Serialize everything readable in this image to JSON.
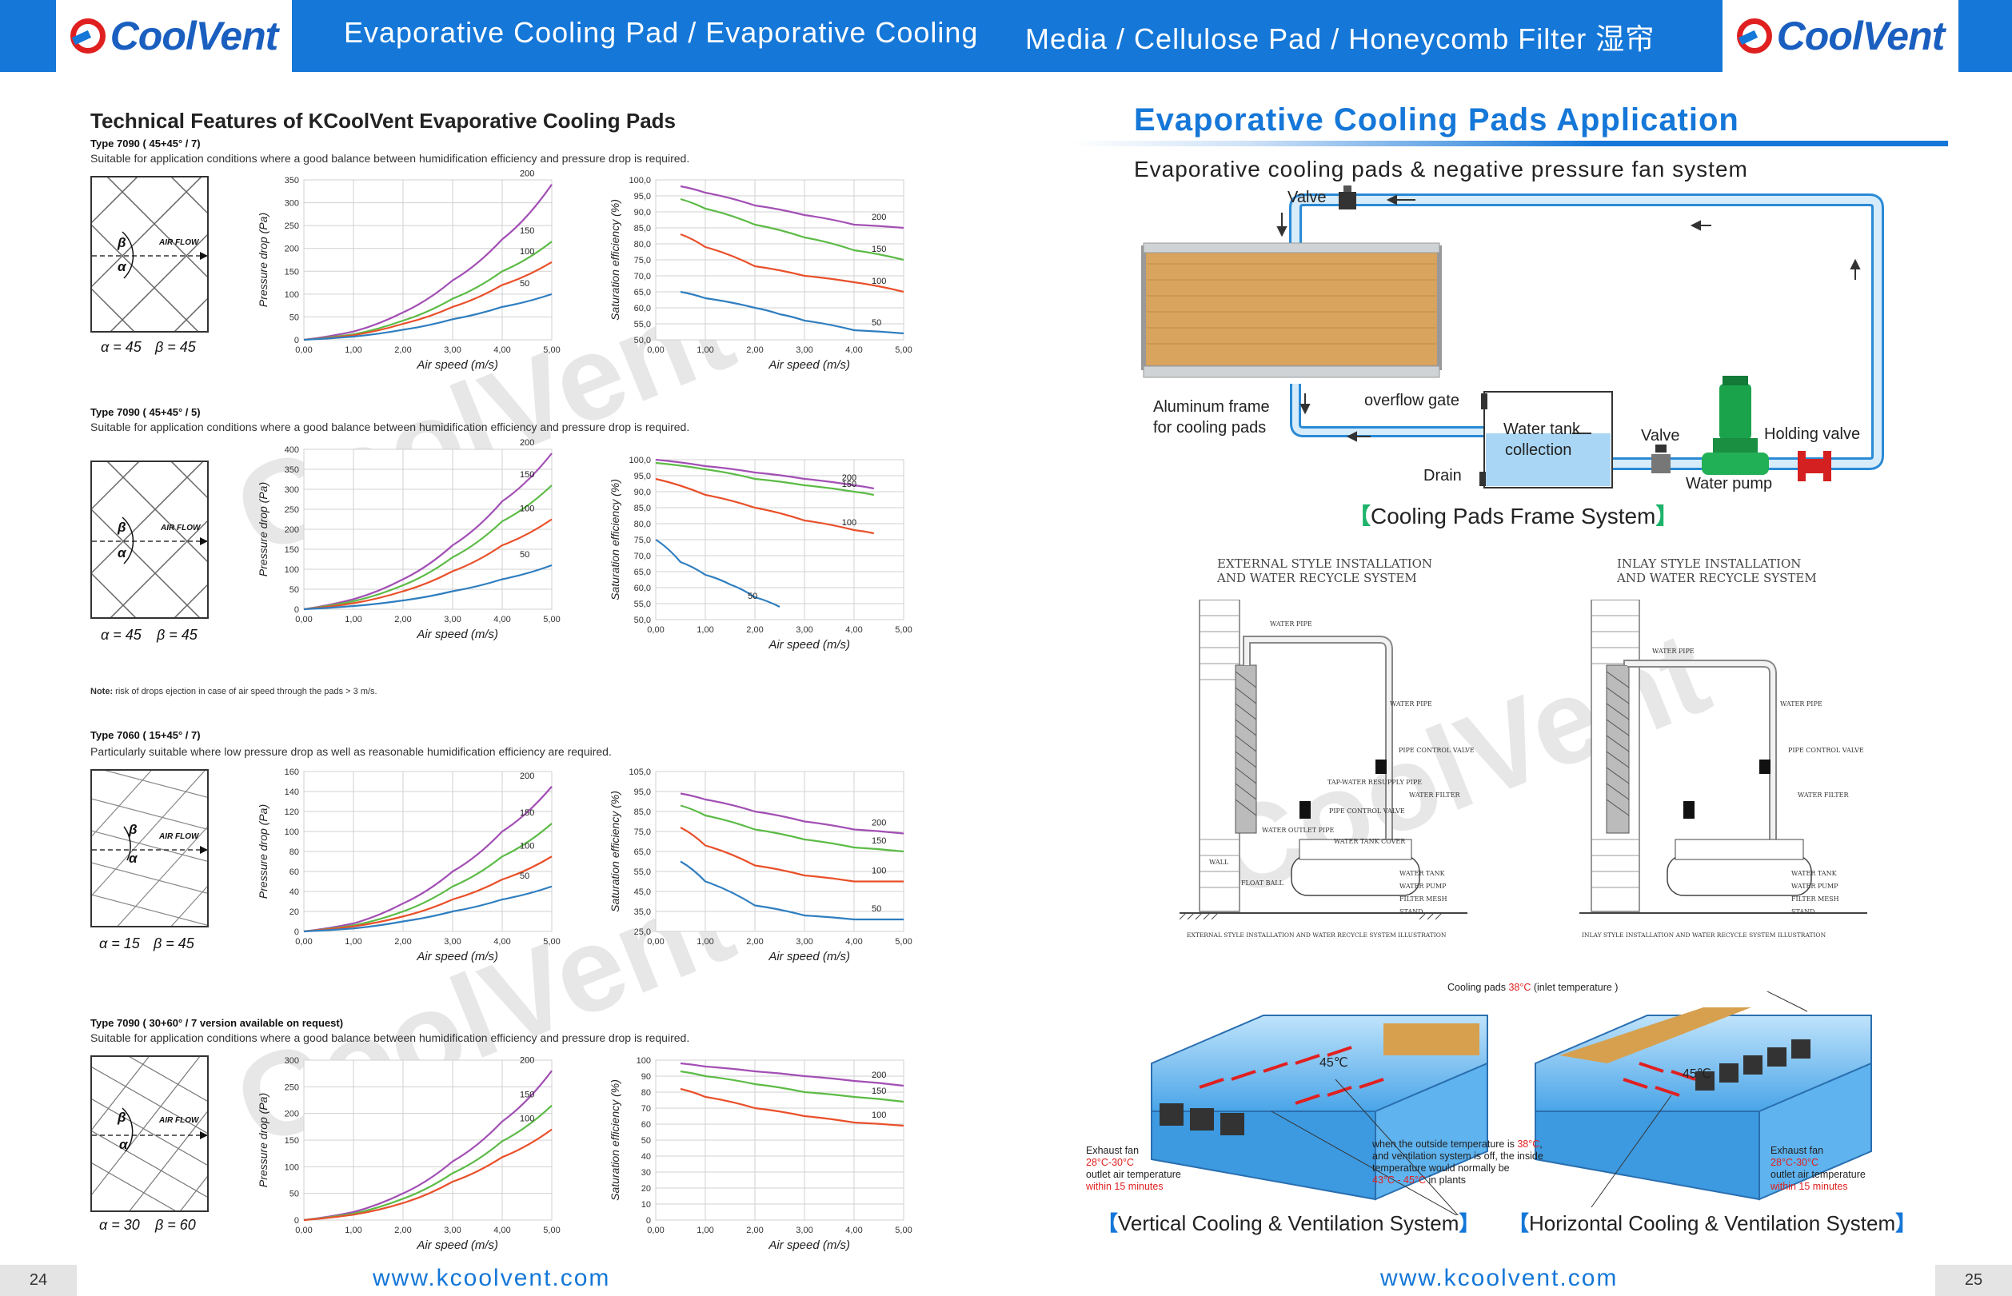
{
  "header": {
    "brand": "CoolVent",
    "title_left": "Evaporative Cooling Pad / Evaporative Cooling",
    "title_right": "Media / Cellulose Pad / Honeycomb Filter  湿帘"
  },
  "left": {
    "title": "Technical Features of KCoolVent Evaporative Cooling Pads",
    "note": "risk of drops ejection in case of air speed through the pads > 3 m/s.",
    "note_label": "Note:",
    "types": [
      {
        "title": "Type 7090 ( 45+45°  / 7)",
        "desc": "Suitable for application conditions where a good balance between humidification efficiency and pressure drop is required.",
        "alpha": "α = 45",
        "beta": "β = 45"
      },
      {
        "title": "Type 7090 ( 45+45°  / 5)",
        "desc": "Suitable for application conditions where a good balance between humidification efficiency and pressure drop is required.",
        "alpha": "α = 45",
        "beta": "β = 45"
      },
      {
        "title": "Type 7060 ( 15+45°  / 7)",
        "desc": "Particularly suitable where low pressure drop as well as reasonable humidification efficiency are required.",
        "alpha": "α = 15",
        "beta": "β = 45"
      },
      {
        "title": "Type 7090 ( 30+60°  / 7 version available on request)",
        "desc": "Suitable for application conditions where a good balance between humidification efficiency and pressure drop is required.",
        "alpha": "α = 30",
        "beta": "β = 60"
      }
    ],
    "airflow_label": "AIR FLOW",
    "beta_sym": "β",
    "alpha_sym": "α"
  },
  "right": {
    "title": "Evaporative Cooling Pads Application",
    "subtitle": "Evaporative cooling pads & negative pressure fan system",
    "frame_labels": {
      "valve_top": "Valve",
      "aluminum": "Aluminum frame",
      "aluminum2": "for cooling pads",
      "overflow": "overflow gate",
      "tank": "Water tank",
      "tank2": "collection",
      "drain": "Drain",
      "valve": "Valve",
      "holding": "Holding valve",
      "pump": "Water pump"
    },
    "frame_caption": "Cooling Pads Frame System",
    "external_title": "EXTERNAL STYLE INSTALLATION",
    "external_title2": "AND WATER RECYCLE SYSTEM",
    "inlay_title": "INLAY STYLE INSTALLATION",
    "inlay_title2": "AND WATER RECYCLE SYSTEM",
    "external_caption": "EXTERNAL STYLE INSTALLATION AND WATER RECYCLE SYSTEM ILLUSTRATION",
    "inlay_caption": "INLAY STYLE INSTALLATION AND WATER RECYCLE SYSTEM ILLUSTRATION",
    "diag_labels": [
      "WATER PIPE",
      "WATER PIPE",
      "PIPE CONTROL VALVE",
      "TAP-WATER RESUPPLY PIPE",
      "WATER FILTER",
      "PIPE CONTROL VALVE",
      "WATER OUTLET PIPE",
      "WATER TANK COVER",
      "WALL",
      "FLOAT BALL",
      "WATER TANK",
      "WATER PUMP",
      "FILTER MESH",
      "STAND"
    ],
    "house": {
      "cooling_pads": "Cooling pads ",
      "cooling_temp": "38°C",
      "cooling_suffix": " (inlet temperature )",
      "temp_inside": "45℃",
      "exhaust1": "Exhaust fan",
      "exhaust_temp": "28°C-30°C",
      "exhaust3": "outlet air temperature",
      "exhaust4": "within 15 minutes",
      "mid1": "when the outside temperature is ",
      "mid1_red": "38°C",
      "mid1_end": ",",
      "mid2": "and ventilation system is off, the inside",
      "mid3": "temperature would normally be",
      "mid4_red": "43°C - 45°C",
      "mid4": " in plants"
    },
    "vertical_caption": "Vertical Cooling & Ventilation System",
    "horizontal_caption": "Horizontal Cooling & Ventilation System"
  },
  "footer": {
    "page_left": "24",
    "page_right": "25",
    "url": "www.kcoolvent.com"
  },
  "watermark": "CoolVent",
  "colors": {
    "brand_blue": "#1577d8",
    "purple": "#a24fb4",
    "green": "#5cbb46",
    "red": "#e9502a",
    "blue": "#2f7ec0"
  },
  "chart_data": [
    {
      "type": "line",
      "title": "Type 7090 (45+45°/7) pressure drop",
      "xlabel": "Air speed  (m/s)",
      "ylabel": "Pressure drop (Pa)",
      "xlim": [
        0,
        5
      ],
      "ylim": [
        0,
        350
      ],
      "yticks": [
        0,
        50,
        100,
        150,
        200,
        250,
        300,
        350
      ],
      "xticks": [
        "0,00",
        "1,00",
        "2,00",
        "3,00",
        "4,00",
        "5,00"
      ],
      "series": [
        {
          "name": "200",
          "x": [
            0,
            1,
            2,
            3,
            4,
            5
          ],
          "values": [
            0,
            18,
            60,
            130,
            220,
            340
          ]
        },
        {
          "name": "150",
          "x": [
            0,
            1,
            2,
            3,
            4,
            5
          ],
          "values": [
            0,
            12,
            42,
            90,
            150,
            215
          ]
        },
        {
          "name": "100",
          "x": [
            0,
            1,
            2,
            3,
            4,
            5
          ],
          "values": [
            0,
            10,
            35,
            72,
            120,
            170
          ]
        },
        {
          "name": "50",
          "x": [
            0,
            1,
            2,
            3,
            4,
            5
          ],
          "values": [
            0,
            7,
            22,
            45,
            72,
            100
          ]
        }
      ]
    },
    {
      "type": "line",
      "title": "Type 7090 (45+45°/7) saturation efficiency",
      "xlabel": "Air speed  (m/s)",
      "ylabel": "Saturation efficiency (%)",
      "xlim": [
        0,
        5
      ],
      "ylim": [
        50,
        100
      ],
      "yticks": [
        "100,0",
        "95,0",
        "90,0",
        "85,0",
        "80,0",
        "75,0",
        "70,0",
        "65,0",
        "60,0",
        "55,0",
        "50,0"
      ],
      "xticks": [
        "0,00",
        "1,00",
        "2,00",
        "3,00",
        "4,00",
        "5,00"
      ],
      "series": [
        {
          "name": "200",
          "x": [
            0.5,
            1,
            2,
            3,
            4,
            5
          ],
          "values": [
            98,
            96,
            92,
            89,
            86,
            85
          ]
        },
        {
          "name": "150",
          "x": [
            0.5,
            1,
            2,
            3,
            4,
            5
          ],
          "values": [
            94,
            91,
            86,
            82,
            78,
            75
          ]
        },
        {
          "name": "100",
          "x": [
            0.5,
            1,
            2,
            3,
            4,
            5
          ],
          "values": [
            83,
            79,
            73,
            70,
            68,
            65
          ]
        },
        {
          "name": "50",
          "x": [
            0.5,
            1,
            2,
            2.5,
            3,
            4,
            5
          ],
          "values": [
            65,
            63,
            60,
            58,
            56,
            53,
            52
          ]
        }
      ]
    },
    {
      "type": "line",
      "title": "Type 7090 (45+45°/5) pressure drop",
      "xlabel": "Air speed  (m/s)",
      "ylabel": "Pressure drop (Pa)",
      "xlim": [
        0,
        5
      ],
      "ylim": [
        0,
        400
      ],
      "yticks": [
        0,
        50,
        100,
        150,
        200,
        250,
        300,
        350,
        400
      ],
      "xticks": [
        "0,00",
        "1,00",
        "2,00",
        "3,00",
        "4,00",
        "5,00"
      ],
      "series": [
        {
          "name": "200",
          "x": [
            0,
            1,
            2,
            3,
            4,
            5
          ],
          "values": [
            0,
            25,
            75,
            160,
            270,
            390
          ]
        },
        {
          "name": "150",
          "x": [
            0,
            1,
            2,
            3,
            4,
            5
          ],
          "values": [
            0,
            20,
            60,
            130,
            220,
            310
          ]
        },
        {
          "name": "100",
          "x": [
            0,
            1,
            2,
            3,
            4,
            5
          ],
          "values": [
            0,
            15,
            45,
            95,
            160,
            225
          ]
        },
        {
          "name": "50",
          "x": [
            0,
            1,
            2,
            3,
            4,
            5
          ],
          "values": [
            0,
            8,
            22,
            45,
            75,
            110
          ]
        }
      ]
    },
    {
      "type": "line",
      "title": "Type 7090 (45+45°/5) saturation efficiency",
      "xlabel": "Air speed  (m/s)",
      "ylabel": "Saturation efficiency (%)",
      "xlim": [
        0,
        5
      ],
      "ylim": [
        50,
        100
      ],
      "yticks": [
        "100,0",
        "95,0",
        "90,0",
        "85,0",
        "80,0",
        "75,0",
        "70,0",
        "65,0",
        "60,0",
        "55,0",
        "50,0"
      ],
      "xticks": [
        "0,00",
        "1,00",
        "2,00",
        "3,00",
        "4,00",
        "5,00"
      ],
      "series": [
        {
          "name": "200",
          "x": [
            0,
            1,
            2,
            3,
            4,
            4.4
          ],
          "values": [
            100,
            98,
            96,
            94,
            92,
            91
          ]
        },
        {
          "name": "150",
          "x": [
            0,
            1,
            2,
            3,
            4,
            4.4
          ],
          "values": [
            99,
            97,
            94,
            92,
            90,
            89
          ]
        },
        {
          "name": "100",
          "x": [
            0,
            1,
            2,
            3,
            4,
            4.4
          ],
          "values": [
            94,
            89,
            85,
            81,
            78,
            77
          ]
        },
        {
          "name": "50",
          "x": [
            0,
            0.5,
            1,
            1.5,
            2,
            2.5
          ],
          "values": [
            75,
            68,
            64,
            61,
            57,
            54
          ]
        }
      ]
    },
    {
      "type": "line",
      "title": "Type 7060 (15+45°/7) pressure drop",
      "xlabel": "Air speed  (m/s)",
      "ylabel": "Pressure drop (Pa)",
      "xlim": [
        0,
        5
      ],
      "ylim": [
        0,
        160
      ],
      "yticks": [
        0,
        20,
        40,
        60,
        80,
        100,
        120,
        140,
        160
      ],
      "xticks": [
        "0,00",
        "1,00",
        "2,00",
        "3,00",
        "4,00",
        "5,00"
      ],
      "series": [
        {
          "name": "200",
          "x": [
            0,
            1,
            2,
            3,
            4,
            5
          ],
          "values": [
            0,
            8,
            28,
            60,
            100,
            145
          ]
        },
        {
          "name": "150",
          "x": [
            0,
            1,
            2,
            3,
            4,
            5
          ],
          "values": [
            0,
            6,
            20,
            45,
            75,
            108
          ]
        },
        {
          "name": "100",
          "x": [
            0,
            1,
            2,
            3,
            4,
            5
          ],
          "values": [
            0,
            5,
            15,
            32,
            52,
            75
          ]
        },
        {
          "name": "50",
          "x": [
            0,
            1,
            2,
            3,
            4,
            5
          ],
          "values": [
            0,
            3,
            10,
            20,
            32,
            45
          ]
        }
      ]
    },
    {
      "type": "line",
      "title": "Type 7060 (15+45°/7) saturation efficiency",
      "xlabel": "Air speed  (m/s)",
      "ylabel": "Saturation efficiency (%)",
      "xlim": [
        0,
        5
      ],
      "ylim": [
        25,
        105
      ],
      "yticks": [
        "105,0",
        "95,0",
        "85,0",
        "75,0",
        "65,0",
        "55,0",
        "45,0",
        "35,0",
        "25,0"
      ],
      "xticks": [
        "0,00",
        "1,00",
        "2,00",
        "3,00",
        "4,00",
        "5,00"
      ],
      "series": [
        {
          "name": "200",
          "x": [
            0.5,
            1,
            2,
            3,
            4,
            5
          ],
          "values": [
            94,
            91,
            85,
            80,
            76,
            74
          ]
        },
        {
          "name": "150",
          "x": [
            0.5,
            1,
            2,
            3,
            4,
            5
          ],
          "values": [
            88,
            83,
            76,
            71,
            67,
            65
          ]
        },
        {
          "name": "100",
          "x": [
            0.5,
            1,
            2,
            3,
            4,
            5
          ],
          "values": [
            77,
            68,
            58,
            53,
            50,
            50
          ]
        },
        {
          "name": "50",
          "x": [
            0.5,
            1,
            2,
            3,
            4,
            5
          ],
          "values": [
            60,
            50,
            38,
            33,
            31,
            31
          ]
        }
      ]
    },
    {
      "type": "line",
      "title": "Type 7090 (30+60°/7) pressure drop",
      "xlabel": "Air speed  (m/s)",
      "ylabel": "Pressure drop (Pa)",
      "xlim": [
        0,
        5
      ],
      "ylim": [
        0,
        300
      ],
      "yticks": [
        0,
        50,
        100,
        150,
        200,
        250,
        300
      ],
      "xticks": [
        "0,00",
        "1,00",
        "2,00",
        "3,00",
        "4,00",
        "5,00"
      ],
      "series": [
        {
          "name": "200",
          "x": [
            0,
            1,
            2,
            3,
            4,
            5
          ],
          "values": [
            0,
            15,
            50,
            110,
            185,
            280
          ]
        },
        {
          "name": "150",
          "x": [
            0,
            1,
            2,
            3,
            4,
            5
          ],
          "values": [
            0,
            12,
            40,
            88,
            148,
            215
          ]
        },
        {
          "name": "100",
          "x": [
            0,
            1,
            2,
            3,
            4,
            5
          ],
          "values": [
            0,
            10,
            32,
            72,
            118,
            170
          ]
        }
      ]
    },
    {
      "type": "line",
      "title": "Type 7090 (30+60°/7) saturation efficiency",
      "xlabel": "Air speed  (m/s)",
      "ylabel": "Saturation efficiency (%)",
      "xlim": [
        0,
        5
      ],
      "ylim": [
        0,
        100
      ],
      "yticks": [
        0,
        10,
        20,
        30,
        40,
        50,
        60,
        70,
        80,
        90,
        100
      ],
      "xticks": [
        "0,00",
        "1,00",
        "2,00",
        "3,00",
        "4,00",
        "5,00"
      ],
      "series": [
        {
          "name": "200",
          "x": [
            0.5,
            1,
            2,
            3,
            4,
            5
          ],
          "values": [
            98,
            96,
            93,
            90,
            87,
            84
          ]
        },
        {
          "name": "150",
          "x": [
            0.5,
            1,
            2,
            3,
            4,
            5
          ],
          "values": [
            93,
            90,
            85,
            80,
            77,
            74
          ]
        },
        {
          "name": "100",
          "x": [
            0.5,
            1,
            2,
            3,
            4,
            5
          ],
          "values": [
            82,
            77,
            70,
            65,
            61,
            59
          ]
        }
      ]
    }
  ]
}
